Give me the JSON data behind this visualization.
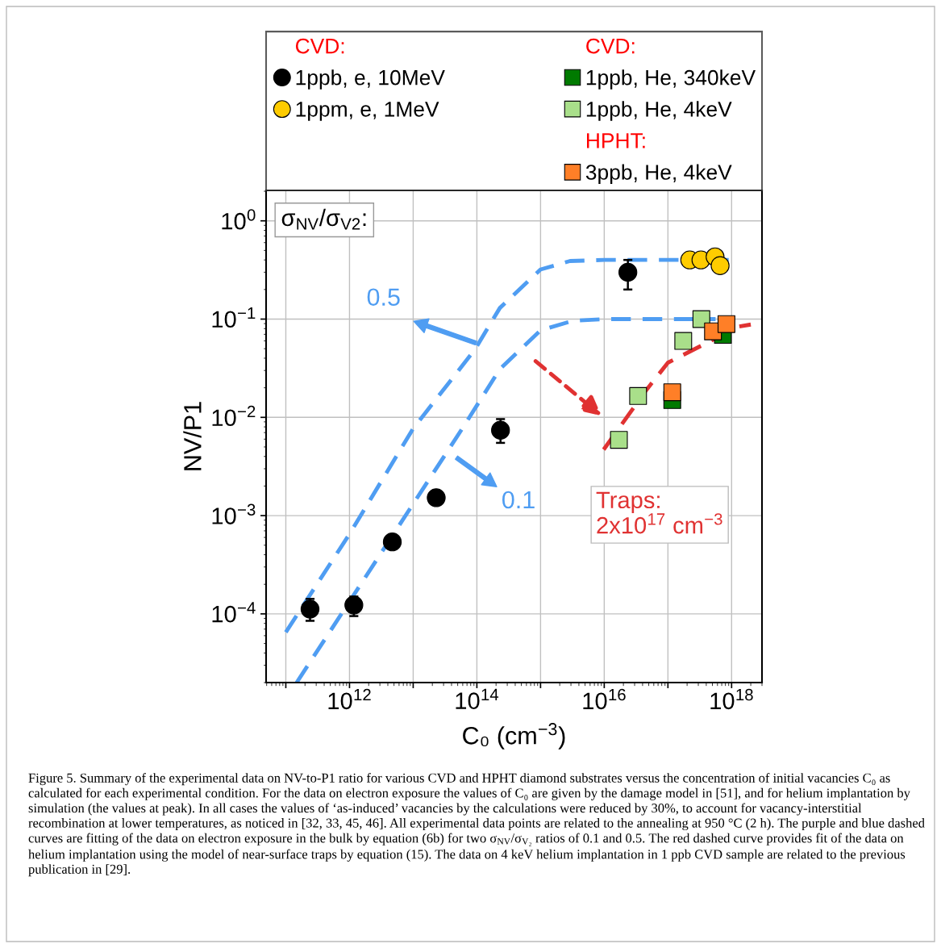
{
  "chart_data": {
    "type": "scatter",
    "xlabel": "C₀ (cm$^{−3}$)",
    "ylabel": "NV/P1",
    "log": "xy",
    "grid": true,
    "legend": "top",
    "xlim": [
      49000000000.0,
      3e+18
    ],
    "ylim": [
      2e-05,
      2.04
    ],
    "xticks": [
      {
        "value": 100000000000.0,
        "label": null
      },
      {
        "value": 1000000000000.0,
        "label": "10$^{12}$"
      },
      {
        "value": 10000000000000.0,
        "label": null
      },
      {
        "value": 100000000000000.0,
        "label": "10$^{14}$"
      },
      {
        "value": 1000000000000000.0,
        "label": null
      },
      {
        "value": 1e+16,
        "label": "10$^{16}$"
      },
      {
        "value": 1e+17,
        "label": null
      },
      {
        "value": 1e+18,
        "label": "10$^{18}$"
      }
    ],
    "yticks": [
      {
        "value": 0.0001,
        "label": "10$^{−4}$"
      },
      {
        "value": 0.001,
        "label": "10$^{−3}$"
      },
      {
        "value": 0.01,
        "label": "10$^{−2}$"
      },
      {
        "value": 0.1,
        "label": "10$^{−1}$"
      },
      {
        "value": 1,
        "label": "10$^{0}$"
      }
    ],
    "series": [
      {
        "type": "line",
        "color": "#4f9df2",
        "line_style": "dashed",
        "marker": "none",
        "x": [
          100000000000.0,
          1000000000000.0,
          10000000000000.0,
          93000000000000.0,
          230000000000000.0,
          1000000000000000.0,
          2900000000000000.0,
          1e+16,
          9e+17
        ],
        "values": [
          6.5e-05,
          0.00065,
          0.0077,
          0.049,
          0.13,
          0.32,
          0.39,
          0.4,
          0.4
        ]
      },
      {
        "type": "line",
        "color": "#4f9df2",
        "line_style": "dashed",
        "marker": "none",
        "x": [
          148000000000.0,
          59000000000000.0,
          230000000000000.0,
          1000000000000000.0,
          3200000000000000.0,
          1e+16,
          5.6e+17
        ],
        "values": [
          2e-05,
          0.0077,
          0.031,
          0.077,
          0.096,
          0.1,
          0.1
        ]
      },
      {
        "type": "line",
        "color": "#e03232",
        "line_style": "dashed",
        "marker": "none",
        "x": [
          9800000000000000.0,
          4.5e+16,
          1e+17,
          1.3e+18,
          2e+18
        ],
        "values": [
          0.0047,
          0.0187,
          0.036,
          0.084,
          0.088
        ]
      },
      {
        "name": "1ppb, e, 10MeV",
        "color": "#000000",
        "marker": "circle",
        "x": [
          240000000000.0,
          1170000000000.0,
          4700000000000.0,
          23000000000000.0,
          235000000000000.0,
          2.35e+16
        ],
        "values": [
          0.000112,
          0.000123,
          0.00054,
          0.00152,
          0.0074,
          0.3
        ],
        "errors": [
          [
            8.5e-05,
            0.000142
          ],
          [
            9.5e-05,
            0.00015
          ],
          null,
          null,
          [
            0.0055,
            0.0096
          ],
          [
            0.2,
            0.4
          ]
        ]
      },
      {
        "name": "1ppm, e, 1MeV",
        "color": "#ffcc00",
        "marker": "circle",
        "x": [
          2.2e+17,
          3.3e+17,
          5.5e+17,
          6.6e+17
        ],
        "values": [
          0.4,
          0.4,
          0.43,
          0.35
        ]
      },
      {
        "name": "1ppb, He, 340keV",
        "color": "#007a00",
        "marker": "square",
        "x": [
          1.17e+17,
          7.3e+17
        ],
        "values": [
          0.015,
          0.069
        ]
      },
      {
        "name": "1ppb, He, 4keV",
        "color": "#a9df8a",
        "marker": "square",
        "x": [
          1.7e+16,
          3.4e+16,
          1.74e+17,
          3.35e+17
        ],
        "values": [
          0.0059,
          0.0165,
          0.06,
          0.1
        ]
      },
      {
        "name": "3ppb, He, 4keV",
        "color": "#ff7f27",
        "marker": "square",
        "x": [
          1.17e+17,
          5.1e+17,
          8.3e+17
        ],
        "values": [
          0.018,
          0.075,
          0.089
        ]
      }
    ],
    "annotations": [
      "CVD:",
      "CVD:",
      "HPHT:",
      "0.5",
      "0.1",
      "Traps:\n2x10$^{17}$ cm$^{−3}$",
      "σ$_{NV}$/σ$_{V2}$:",
      "Figure 5. Summary of the experimental data on NV-to-P1 ratio for various CVD and HPHT diamond substrates versus the concentration of initial vacancies C₀ as calculated for each experimental condition. For the data on electron exposure the values of C₀ are given by the damage model in [51], and for helium implantation by simulation (the values at peak). In all cases the values of ‘as-induced’ vacancies by the calculations were reduced by 30%, to account for vacancy-interstitial recombination at lower temperatures, as noticed in [32, 33, 45, 46]. All experimental data points are related to the annealing at 950 °C (2 h). The purple and blue dashed curves are fitting of the data on electron exposure in the bulk by equation (6b) for two σ$_{NV}$/σ$_{V₂}$ ratios of 0.1 and 0.5. The red dashed curve provides fit of the data on helium implantation using the model of near-surface traps by equation (15). The data on 4 keV helium implantation in 1 ppb CVD sample are related to the previous publication in [29]."
    ]
  }
}
